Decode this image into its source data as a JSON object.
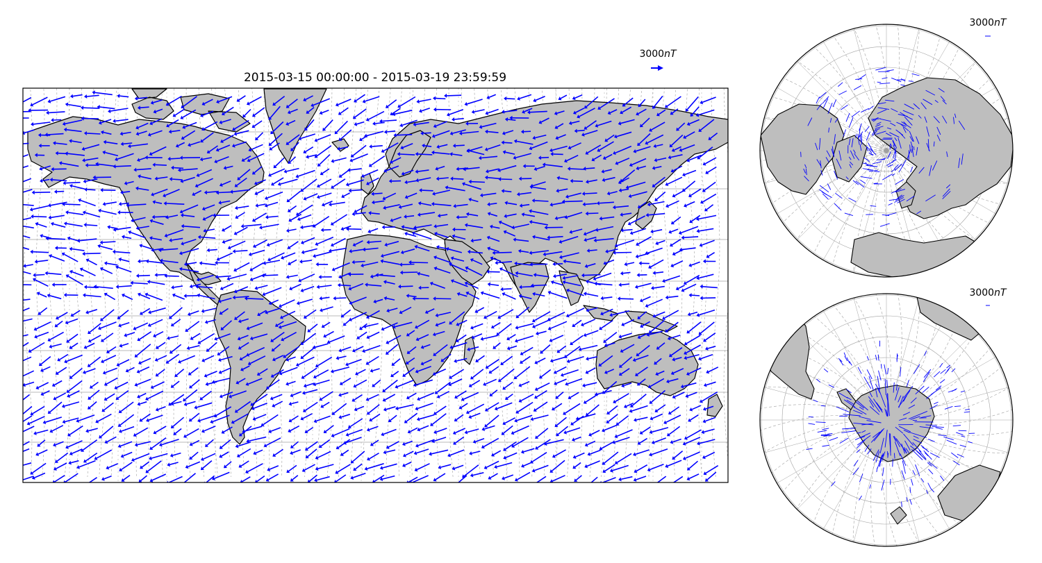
{
  "main_map": {
    "title": "2015-03-15 00:00:00 - 2015-03-19 23:59:59",
    "scale_label": "3000nT",
    "scale_label_value": "3000",
    "scale_label_unit": "nT",
    "projection": "Mercator"
  },
  "north_map": {
    "scale_label_value": "3000",
    "scale_label_unit": "nT",
    "projection": "Orthographic north polar"
  },
  "south_map": {
    "scale_label_value": "3000",
    "scale_label_unit": "nT",
    "projection": "Orthographic south polar"
  },
  "colors": {
    "vector": "#0000ff",
    "land": "#bebebe",
    "coast": "#000000",
    "grid": "#a0a0a0",
    "ocean": "#ffffff"
  }
}
